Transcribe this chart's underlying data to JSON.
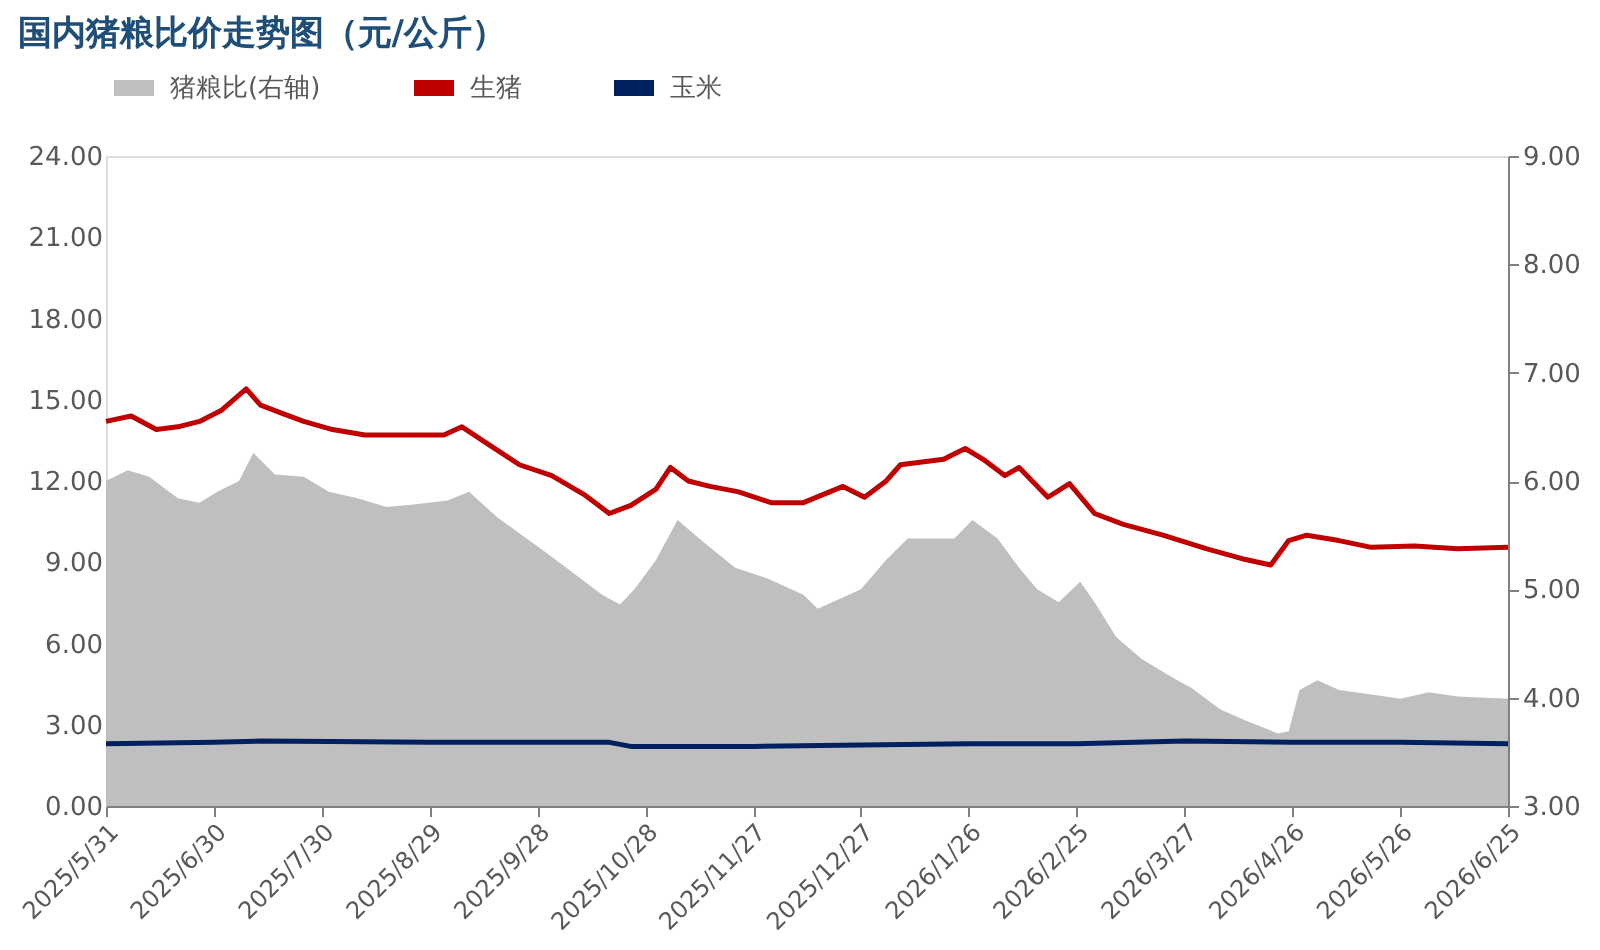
{
  "chart_data": {
    "type": "line",
    "title": "国内猪粮比价走势图（元/公斤）",
    "legend": "top",
    "grid": false,
    "xlim": [
      "2025-05-31",
      "2026-06-25"
    ],
    "xticks": [
      {
        "value": "2025-05-31",
        "label": "2025/5/31"
      },
      {
        "value": "2025-06-30",
        "label": "2025/6/30"
      },
      {
        "value": "2025-07-30",
        "label": "2025/7/30"
      },
      {
        "value": "2025-08-29",
        "label": "2025/8/29"
      },
      {
        "value": "2025-09-28",
        "label": "2025/9/28"
      },
      {
        "value": "2025-10-28",
        "label": "2025/10/28"
      },
      {
        "value": "2025-11-27",
        "label": "2025/11/27"
      },
      {
        "value": "2025-12-27",
        "label": "2025/12/27"
      },
      {
        "value": "2026-01-26",
        "label": "2026/1/26"
      },
      {
        "value": "2026-02-25",
        "label": "2026/2/25"
      },
      {
        "value": "2026-03-27",
        "label": "2026/3/27"
      },
      {
        "value": "2026-04-26",
        "label": "2026/4/26"
      },
      {
        "value": "2026-05-26",
        "label": "2026/5/26"
      },
      {
        "value": "2026-06-25",
        "label": "2026/6/25"
      }
    ],
    "ylim": [
      0,
      24
    ],
    "yticks": [
      {
        "value": 0,
        "label": "0.00"
      },
      {
        "value": 3,
        "label": "3.00"
      },
      {
        "value": 6,
        "label": "6.00"
      },
      {
        "value": 9,
        "label": "9.00"
      },
      {
        "value": 12,
        "label": "12.00"
      },
      {
        "value": 15,
        "label": "15.00"
      },
      {
        "value": 18,
        "label": "18.00"
      },
      {
        "value": 21,
        "label": "21.00"
      },
      {
        "value": 24,
        "label": "24.00"
      }
    ],
    "y2lim": [
      3,
      9
    ],
    "y2ticks": [
      {
        "value": 3,
        "label": "3.00"
      },
      {
        "value": 4,
        "label": "4.00"
      },
      {
        "value": 5,
        "label": "5.00"
      },
      {
        "value": 6,
        "label": "6.00"
      },
      {
        "value": 7,
        "label": "7.00"
      },
      {
        "value": 8,
        "label": "8.00"
      },
      {
        "value": 9,
        "label": "9.00"
      }
    ],
    "series": [
      {
        "name": "猪粮比(右轴)",
        "type": "area",
        "axis": "y2",
        "color": "#bfbfbf",
        "x": [
          "2025-05-31",
          "2025-06-06",
          "2025-06-12",
          "2025-06-20",
          "2025-06-26",
          "2025-07-01",
          "2025-07-07",
          "2025-07-11",
          "2025-07-17",
          "2025-07-25",
          "2025-08-01",
          "2025-08-09",
          "2025-08-17",
          "2025-08-24",
          "2025-09-03",
          "2025-09-09",
          "2025-09-17",
          "2025-09-25",
          "2025-09-30",
          "2025-10-08",
          "2025-10-16",
          "2025-10-21",
          "2025-10-25",
          "2025-10-31",
          "2025-11-06",
          "2025-11-12",
          "2025-11-22",
          "2025-12-01",
          "2025-12-11",
          "2025-12-15",
          "2025-12-27",
          "2026-01-03",
          "2026-01-09",
          "2026-01-22",
          "2026-01-27",
          "2026-02-03",
          "2026-02-09",
          "2026-02-14",
          "2026-02-20",
          "2026-02-26",
          "2026-03-02",
          "2026-03-08",
          "2026-03-15",
          "2026-03-24",
          "2026-03-29",
          "2026-04-06",
          "2026-04-13",
          "2026-04-22",
          "2026-04-25",
          "2026-04-28",
          "2026-05-03",
          "2026-05-09",
          "2026-05-18",
          "2026-05-26",
          "2026-06-03",
          "2026-06-11",
          "2026-06-25"
        ],
        "values": [
          6.0,
          6.1,
          6.04,
          5.84,
          5.8,
          5.9,
          6.0,
          6.26,
          6.06,
          6.04,
          5.9,
          5.84,
          5.76,
          5.78,
          5.82,
          5.9,
          5.66,
          5.47,
          5.35,
          5.15,
          4.95,
          4.86,
          5.0,
          5.27,
          5.64,
          5.47,
          5.2,
          5.1,
          4.95,
          4.82,
          5.0,
          5.27,
          5.47,
          5.47,
          5.64,
          5.47,
          5.2,
          5.0,
          4.88,
          5.07,
          4.88,
          4.56,
          4.36,
          4.18,
          4.09,
          3.89,
          3.79,
          3.67,
          3.69,
          4.07,
          4.16,
          4.07,
          4.03,
          3.99,
          4.05,
          4.01,
          3.99
        ]
      },
      {
        "name": "生猪",
        "color": "#c00000",
        "x": [
          "2025-05-31",
          "2025-06-07",
          "2025-06-14",
          "2025-06-20",
          "2025-06-26",
          "2025-07-02",
          "2025-07-09",
          "2025-07-13",
          "2025-07-19",
          "2025-07-25",
          "2025-08-02",
          "2025-08-11",
          "2025-08-23",
          "2025-09-02",
          "2025-09-07",
          "2025-09-15",
          "2025-09-23",
          "2025-10-02",
          "2025-10-11",
          "2025-10-18",
          "2025-10-24",
          "2025-10-31",
          "2025-11-04",
          "2025-11-09",
          "2025-11-15",
          "2025-11-23",
          "2025-12-02",
          "2025-12-11",
          "2025-12-22",
          "2025-12-28",
          "2026-01-03",
          "2026-01-07",
          "2026-01-19",
          "2026-01-25",
          "2026-01-30",
          "2026-02-05",
          "2026-02-09",
          "2026-02-17",
          "2026-02-23",
          "2026-03-02",
          "2026-03-10",
          "2026-03-21",
          "2026-04-02",
          "2026-04-13",
          "2026-04-20",
          "2026-04-25",
          "2026-04-30",
          "2026-05-09",
          "2026-05-18",
          "2026-05-30",
          "2026-06-11",
          "2026-06-25"
        ],
        "values": [
          14.2,
          14.4,
          13.9,
          14.0,
          14.2,
          14.6,
          15.4,
          14.8,
          14.5,
          14.2,
          13.9,
          13.7,
          13.7,
          13.7,
          14.0,
          13.3,
          12.6,
          12.2,
          11.5,
          10.8,
          11.1,
          11.7,
          12.5,
          12.0,
          11.8,
          11.6,
          11.2,
          11.2,
          11.8,
          11.4,
          12.0,
          12.6,
          12.8,
          13.2,
          12.8,
          12.2,
          12.5,
          11.4,
          11.9,
          10.8,
          10.4,
          10.0,
          9.5,
          9.1,
          8.9,
          9.8,
          10.0,
          9.8,
          9.55,
          9.6,
          9.5,
          9.55
        ]
      },
      {
        "name": "玉米",
        "color": "#002060",
        "x": [
          "2025-05-31",
          "2025-06-30",
          "2025-07-13",
          "2025-08-29",
          "2025-10-18",
          "2025-10-24",
          "2025-11-27",
          "2025-12-27",
          "2026-01-26",
          "2026-02-25",
          "2026-03-27",
          "2026-04-26",
          "2026-05-26",
          "2026-06-25"
        ],
        "values": [
          2.3,
          2.35,
          2.4,
          2.35,
          2.35,
          2.2,
          2.2,
          2.25,
          2.3,
          2.3,
          2.4,
          2.35,
          2.35,
          2.3
        ]
      }
    ]
  }
}
